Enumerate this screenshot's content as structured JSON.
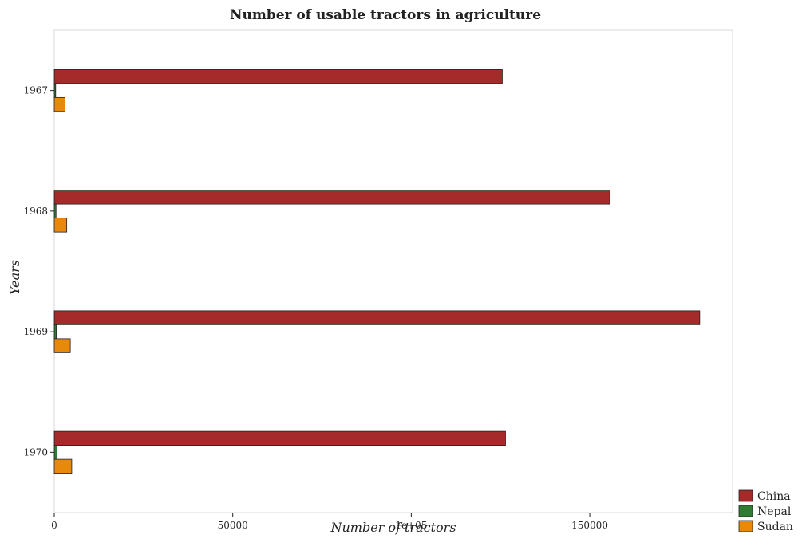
{
  "chart_data": {
    "type": "bar",
    "orientation": "horizontal",
    "title": "Number of usable tractors in agriculture",
    "xlabel": "Number of tractors",
    "ylabel": "Years",
    "categories": [
      "1967",
      "1968",
      "1969",
      "1970"
    ],
    "series": [
      {
        "name": "China",
        "color": "#a52a2a",
        "values": [
          125500,
          155600,
          180800,
          126400
        ]
      },
      {
        "name": "Nepal",
        "color": "#2e7d32",
        "values": [
          400,
          500,
          600,
          800
        ]
      },
      {
        "name": "Sudan",
        "color": "#e8890c",
        "values": [
          3000,
          3500,
          4500,
          4900
        ]
      }
    ],
    "xlim": [
      0,
      190000
    ],
    "xticks": [
      0,
      50000,
      100000,
      150000
    ],
    "xtick_labels": [
      "0",
      "50000",
      "1e+05",
      "150000"
    ],
    "legend_position": "bottom-right",
    "grid": false
  }
}
